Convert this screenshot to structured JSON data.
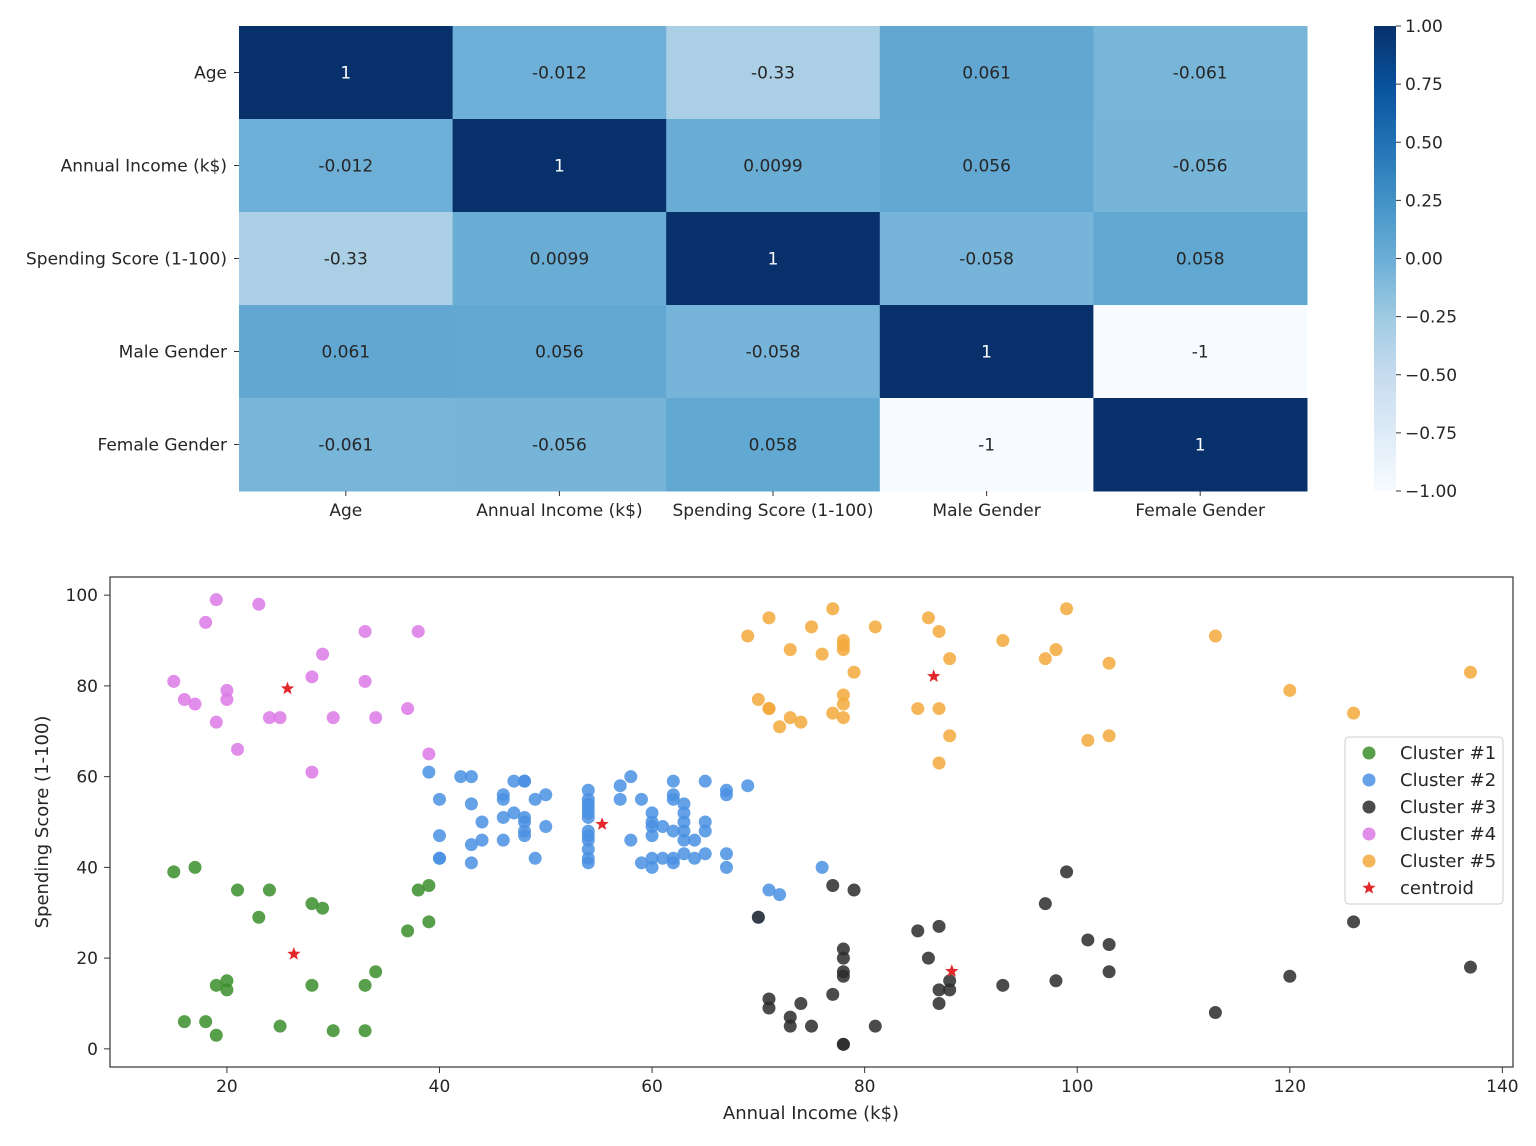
{
  "chart_data": [
    {
      "type": "heatmap",
      "title": "",
      "rows": [
        "Age",
        "Annual Income (k$)",
        "Spending Score (1-100)",
        "Male Gender",
        "Female Gender"
      ],
      "columns": [
        "Age",
        "Annual Income (k$)",
        "Spending Score (1-100)",
        "Male Gender",
        "Female Gender"
      ],
      "values": [
        [
          1,
          -0.012,
          -0.33,
          0.061,
          -0.061
        ],
        [
          -0.012,
          1,
          0.0099,
          0.056,
          -0.056
        ],
        [
          -0.33,
          0.0099,
          1,
          -0.058,
          0.058
        ],
        [
          0.061,
          0.056,
          -0.058,
          1,
          -1
        ],
        [
          -0.061,
          -0.056,
          0.058,
          -1,
          1
        ]
      ],
      "value_labels": [
        [
          "1",
          "-0.012",
          "-0.33",
          "0.061",
          "-0.061"
        ],
        [
          "-0.012",
          "1",
          "0.0099",
          "0.056",
          "-0.056"
        ],
        [
          "-0.33",
          "0.0099",
          "1",
          "-0.058",
          "0.058"
        ],
        [
          "0.061",
          "0.056",
          "-0.058",
          "1",
          "-1"
        ],
        [
          "-0.061",
          "-0.056",
          "0.058",
          "-1",
          "1"
        ]
      ],
      "colormap": "Blues",
      "colormap_stops": [
        "#f7fbff",
        "#deebf7",
        "#c6dbef",
        "#9ecae1",
        "#6baed6",
        "#4292c6",
        "#2171b5",
        "#08519c",
        "#08306b"
      ],
      "color_range": [
        -1,
        1
      ],
      "colorbar_ticks": [
        1.0,
        0.75,
        0.5,
        0.25,
        0.0,
        -0.25,
        -0.5,
        -0.75,
        -1.0
      ],
      "colorbar_tick_labels": [
        "1.00",
        "0.75",
        "0.50",
        "0.25",
        "0.00",
        "−0.25",
        "−0.50",
        "−0.75",
        "−1.00"
      ]
    },
    {
      "type": "scatter",
      "title": "",
      "xlabel": "Annual Income (k$)",
      "ylabel": "Spending Score (1-100)",
      "xlim": [
        9,
        141
      ],
      "ylim": [
        -4,
        104
      ],
      "xticks": [
        20,
        40,
        60,
        80,
        100,
        120,
        140
      ],
      "yticks": [
        0,
        20,
        40,
        60,
        80,
        100
      ],
      "grid": false,
      "legend_position": "right",
      "series": [
        {
          "name": "Cluster #1",
          "color": "#3a8e2a",
          "marker": "circle",
          "points": [
            [
              15,
              39
            ],
            [
              16,
              6
            ],
            [
              17,
              40
            ],
            [
              18,
              6
            ],
            [
              19,
              3
            ],
            [
              19,
              14
            ],
            [
              20,
              15
            ],
            [
              20,
              13
            ],
            [
              21,
              35
            ],
            [
              23,
              29
            ],
            [
              24,
              35
            ],
            [
              25,
              5
            ],
            [
              28,
              14
            ],
            [
              28,
              32
            ],
            [
              29,
              31
            ],
            [
              30,
              4
            ],
            [
              33,
              4
            ],
            [
              33,
              14
            ],
            [
              34,
              17
            ],
            [
              37,
              26
            ],
            [
              38,
              35
            ],
            [
              39,
              36
            ],
            [
              39,
              28
            ]
          ]
        },
        {
          "name": "Cluster #2",
          "color": "#4a90e2",
          "marker": "circle",
          "points": [
            [
              39,
              61
            ],
            [
              40,
              55
            ],
            [
              40,
              47
            ],
            [
              40,
              42
            ],
            [
              40,
              42
            ],
            [
              42,
              60
            ],
            [
              43,
              60
            ],
            [
              43,
              54
            ],
            [
              43,
              45
            ],
            [
              43,
              41
            ],
            [
              44,
              50
            ],
            [
              44,
              46
            ],
            [
              46,
              51
            ],
            [
              46,
              46
            ],
            [
              46,
              56
            ],
            [
              46,
              55
            ],
            [
              47,
              52
            ],
            [
              47,
              59
            ],
            [
              48,
              51
            ],
            [
              48,
              59
            ],
            [
              48,
              50
            ],
            [
              48,
              48
            ],
            [
              48,
              59
            ],
            [
              48,
              47
            ],
            [
              49,
              55
            ],
            [
              49,
              42
            ],
            [
              50,
              49
            ],
            [
              50,
              56
            ],
            [
              54,
              47
            ],
            [
              54,
              54
            ],
            [
              54,
              53
            ],
            [
              54,
              48
            ],
            [
              54,
              52
            ],
            [
              54,
              42
            ],
            [
              54,
              51
            ],
            [
              54,
              55
            ],
            [
              54,
              41
            ],
            [
              54,
              44
            ],
            [
              54,
              57
            ],
            [
              54,
              46
            ],
            [
              57,
              58
            ],
            [
              57,
              55
            ],
            [
              58,
              60
            ],
            [
              58,
              46
            ],
            [
              59,
              55
            ],
            [
              59,
              41
            ],
            [
              60,
              49
            ],
            [
              60,
              40
            ],
            [
              60,
              42
            ],
            [
              60,
              52
            ],
            [
              60,
              47
            ],
            [
              60,
              50
            ],
            [
              61,
              42
            ],
            [
              61,
              49
            ],
            [
              62,
              41
            ],
            [
              62,
              48
            ],
            [
              62,
              59
            ],
            [
              62,
              55
            ],
            [
              62,
              56
            ],
            [
              62,
              42
            ],
            [
              63,
              50
            ],
            [
              63,
              46
            ],
            [
              63,
              43
            ],
            [
              63,
              48
            ],
            [
              63,
              52
            ],
            [
              63,
              54
            ],
            [
              64,
              42
            ],
            [
              64,
              46
            ],
            [
              65,
              48
            ],
            [
              65,
              50
            ],
            [
              65,
              43
            ],
            [
              65,
              59
            ],
            [
              67,
              43
            ],
            [
              67,
              57
            ],
            [
              67,
              56
            ],
            [
              67,
              40
            ],
            [
              69,
              58
            ],
            [
              70,
              29
            ],
            [
              71,
              35
            ],
            [
              72,
              34
            ],
            [
              76,
              40
            ]
          ]
        },
        {
          "name": "Cluster #3",
          "color": "#2b2b2b",
          "marker": "circle",
          "points": [
            [
              70,
              29
            ],
            [
              71,
              11
            ],
            [
              71,
              9
            ],
            [
              73,
              5
            ],
            [
              73,
              7
            ],
            [
              74,
              10
            ],
            [
              75,
              5
            ],
            [
              77,
              12
            ],
            [
              77,
              36
            ],
            [
              78,
              22
            ],
            [
              78,
              17
            ],
            [
              78,
              20
            ],
            [
              78,
              16
            ],
            [
              78,
              1
            ],
            [
              78,
              1
            ],
            [
              79,
              35
            ],
            [
              81,
              5
            ],
            [
              85,
              26
            ],
            [
              86,
              20
            ],
            [
              87,
              27
            ],
            [
              87,
              13
            ],
            [
              87,
              10
            ],
            [
              88,
              13
            ],
            [
              88,
              15
            ],
            [
              93,
              14
            ],
            [
              97,
              32
            ],
            [
              98,
              15
            ],
            [
              99,
              39
            ],
            [
              101,
              24
            ],
            [
              103,
              17
            ],
            [
              103,
              23
            ],
            [
              113,
              8
            ],
            [
              120,
              16
            ],
            [
              126,
              28
            ],
            [
              137,
              18
            ]
          ]
        },
        {
          "name": "Cluster #4",
          "color": "#dc79e6",
          "marker": "circle",
          "points": [
            [
              15,
              81
            ],
            [
              16,
              77
            ],
            [
              17,
              76
            ],
            [
              18,
              94
            ],
            [
              19,
              72
            ],
            [
              19,
              99
            ],
            [
              20,
              77
            ],
            [
              20,
              79
            ],
            [
              21,
              66
            ],
            [
              23,
              98
            ],
            [
              24,
              73
            ],
            [
              25,
              73
            ],
            [
              28,
              82
            ],
            [
              28,
              61
            ],
            [
              29,
              87
            ],
            [
              30,
              73
            ],
            [
              33,
              92
            ],
            [
              33,
              81
            ],
            [
              34,
              73
            ],
            [
              37,
              75
            ],
            [
              38,
              92
            ],
            [
              39,
              65
            ]
          ]
        },
        {
          "name": "Cluster #5",
          "color": "#f2a93b",
          "marker": "circle",
          "points": [
            [
              69,
              91
            ],
            [
              70,
              77
            ],
            [
              71,
              95
            ],
            [
              71,
              75
            ],
            [
              71,
              75
            ],
            [
              72,
              71
            ],
            [
              73,
              88
            ],
            [
              73,
              73
            ],
            [
              74,
              72
            ],
            [
              75,
              93
            ],
            [
              76,
              87
            ],
            [
              77,
              97
            ],
            [
              77,
              74
            ],
            [
              78,
              90
            ],
            [
              78,
              88
            ],
            [
              78,
              76
            ],
            [
              78,
              89
            ],
            [
              78,
              78
            ],
            [
              78,
              73
            ],
            [
              79,
              83
            ],
            [
              81,
              93
            ],
            [
              85,
              75
            ],
            [
              86,
              95
            ],
            [
              87,
              63
            ],
            [
              87,
              75
            ],
            [
              87,
              92
            ],
            [
              88,
              86
            ],
            [
              88,
              69
            ],
            [
              93,
              90
            ],
            [
              97,
              86
            ],
            [
              98,
              88
            ],
            [
              99,
              97
            ],
            [
              101,
              68
            ],
            [
              103,
              85
            ],
            [
              103,
              69
            ],
            [
              113,
              91
            ],
            [
              120,
              79
            ],
            [
              126,
              74
            ],
            [
              137,
              83
            ]
          ]
        },
        {
          "name": "centroid",
          "color": "#e3272b",
          "marker": "star",
          "points": [
            [
              25.7,
              79.4
            ],
            [
              26.3,
              20.9
            ],
            [
              55.3,
              49.5
            ],
            [
              86.5,
              82.1
            ],
            [
              88.2,
              17.1
            ]
          ]
        }
      ]
    }
  ]
}
